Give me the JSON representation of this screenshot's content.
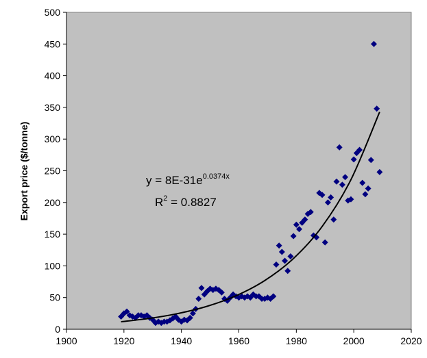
{
  "chart_data": {
    "type": "scatter",
    "y_label": "Export price ($/tonne)",
    "equation": {
      "text": "y = 8E-31e",
      "exponent": "0.0374x"
    },
    "r_squared": {
      "text": "R",
      "sup": "2",
      "rest": " = 0.8827"
    },
    "xlim": [
      1900,
      2020
    ],
    "xticks": [
      1900,
      1920,
      1940,
      1960,
      1980,
      2000,
      2020
    ],
    "ylim": [
      0,
      500
    ],
    "yticks": [
      0,
      50,
      100,
      150,
      200,
      250,
      300,
      350,
      400,
      450,
      500
    ],
    "grid": false,
    "background": "#c0c0c0",
    "series": [
      {
        "color": "#000080",
        "x": [
          1919,
          1920,
          1921,
          1922,
          1923,
          1924,
          1925,
          1926,
          1927,
          1928,
          1929,
          1930,
          1931,
          1932,
          1933,
          1934,
          1935,
          1936,
          1937,
          1938,
          1939,
          1940,
          1941,
          1942,
          1943,
          1944,
          1945,
          1946,
          1947,
          1948,
          1949,
          1950,
          1951,
          1952,
          1953,
          1954,
          1955,
          1956,
          1957,
          1958,
          1959,
          1960,
          1961,
          1962,
          1963,
          1964,
          1965,
          1966,
          1967,
          1968,
          1969,
          1970,
          1971,
          1972,
          1973,
          1974,
          1975,
          1976,
          1977,
          1978,
          1979,
          1980,
          1981,
          1982,
          1983,
          1984,
          1985,
          1986,
          1987,
          1988,
          1989,
          1990,
          1991,
          1992,
          1993,
          1994,
          1995,
          1996,
          1997,
          1998,
          1999,
          2000,
          2001,
          2002,
          2003,
          2004,
          2005,
          2006,
          2007,
          2008,
          2009
        ],
        "values": [
          20,
          25,
          28,
          22,
          20,
          18,
          22,
          22,
          20,
          22,
          18,
          15,
          10,
          12,
          10,
          12,
          12,
          14,
          17,
          20,
          15,
          12,
          15,
          14,
          18,
          25,
          32,
          48,
          65,
          55,
          60,
          64,
          62,
          64,
          62,
          58,
          48,
          45,
          50,
          55,
          52,
          50,
          52,
          50,
          52,
          50,
          55,
          52,
          52,
          48,
          48,
          50,
          48,
          52,
          102,
          132,
          122,
          108,
          92,
          115,
          147,
          165,
          158,
          168,
          173,
          182,
          185,
          148,
          145,
          215,
          212,
          137,
          200,
          208,
          173,
          233,
          287,
          228,
          240,
          203,
          205,
          268,
          278,
          283,
          231,
          213,
          222,
          267,
          450,
          348,
          248
        ]
      }
    ],
    "trendline": {
      "color": "#000000",
      "x": [
        1919,
        1929,
        1939,
        1949,
        1959,
        1969,
        1979,
        1989,
        1999,
        2009
      ],
      "values": [
        11.8,
        17.2,
        25.0,
        36.3,
        52.8,
        76.8,
        111.6,
        162.2,
        235.9,
        342.8
      ]
    }
  }
}
